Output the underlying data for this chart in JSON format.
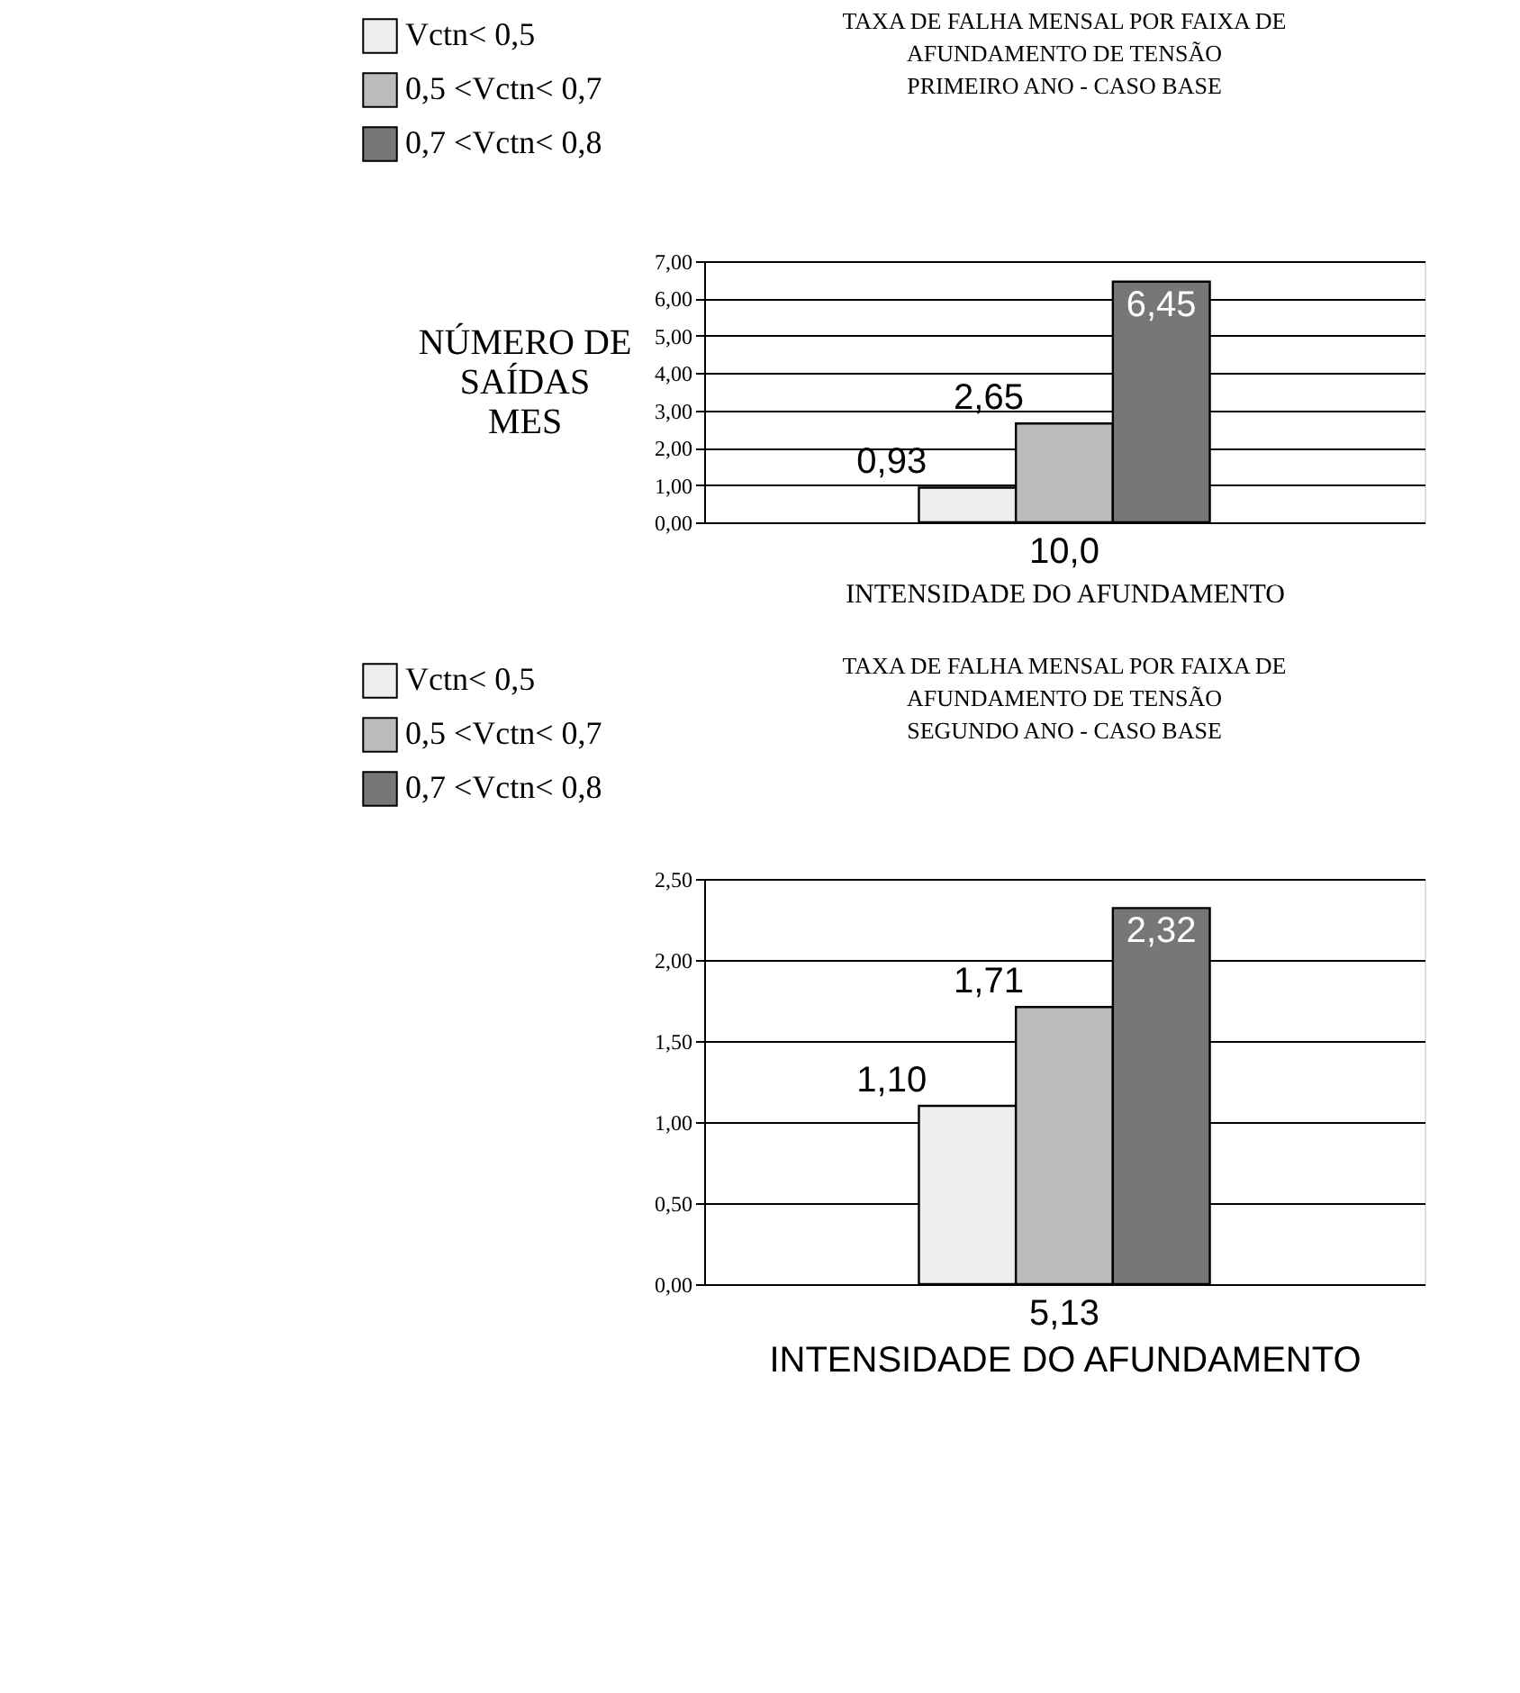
{
  "chart_data": [
    {
      "type": "bar",
      "title": "TAXA DE FALHA MENSAL POR FAIXA DE\nAFUNDAMENTO DE TENSÃO\nPRIMEIRO ANO -  CASO BASE",
      "ylabel": "NÚMERO DE\nSAÍDAS\nMES",
      "xlabel": "INTENSIDADE DO AFUNDAMENTO",
      "categories": [
        "10,0"
      ],
      "series": [
        {
          "name": "Vctn< 0,5",
          "color": "#eeeeee",
          "values": [
            0.93
          ],
          "value_labels": [
            "0,93"
          ]
        },
        {
          "name": "0,5 <Vctn< 0,7",
          "color": "#bbbbbb",
          "values": [
            2.65
          ],
          "value_labels": [
            "2,65"
          ]
        },
        {
          "name": "0,7 <Vctn< 0,8",
          "color": "#777777",
          "values": [
            6.45
          ],
          "value_labels": [
            "6,45"
          ]
        }
      ],
      "ylim": [
        0,
        7
      ],
      "yticks": [
        {
          "value": 0,
          "label": "0,00"
        },
        {
          "value": 1,
          "label": "1,00"
        },
        {
          "value": 2,
          "label": "2,00"
        },
        {
          "value": 3,
          "label": "3,00"
        },
        {
          "value": 4,
          "label": "4,00"
        },
        {
          "value": 5,
          "label": "5,00"
        },
        {
          "value": 6,
          "label": "6,00"
        },
        {
          "value": 7,
          "label": "7,00"
        }
      ],
      "grid": "y",
      "legend": "top left"
    },
    {
      "type": "bar",
      "title": "TAXA DE FALHA MENSAL POR FAIXA DE\nAFUNDAMENTO DE TENSÃO\nSEGUNDO ANO - CASO BASE",
      "xlabel": "INTENSIDADE DO AFUNDAMENTO",
      "categories": [
        "5,13"
      ],
      "series": [
        {
          "name": "Vctn< 0,5",
          "color": "#eeeeee",
          "values": [
            1.1
          ],
          "value_labels": [
            "1,10"
          ]
        },
        {
          "name": "0,5 <Vctn< 0,7",
          "color": "#bbbbbb",
          "values": [
            1.71
          ],
          "value_labels": [
            "1,71"
          ]
        },
        {
          "name": "0,7 <Vctn< 0,8",
          "color": "#777777",
          "values": [
            2.32
          ],
          "value_labels": [
            "2,32"
          ]
        }
      ],
      "ylim": [
        0,
        2.5
      ],
      "yticks": [
        {
          "value": 0,
          "label": "0,00"
        },
        {
          "value": 0.5,
          "label": "0,50"
        },
        {
          "value": 1,
          "label": "1,00"
        },
        {
          "value": 1.5,
          "label": "1,50"
        },
        {
          "value": 2,
          "label": "2,00"
        },
        {
          "value": 2.5,
          "label": "2,50"
        }
      ],
      "grid": "y",
      "legend": "top left"
    }
  ]
}
